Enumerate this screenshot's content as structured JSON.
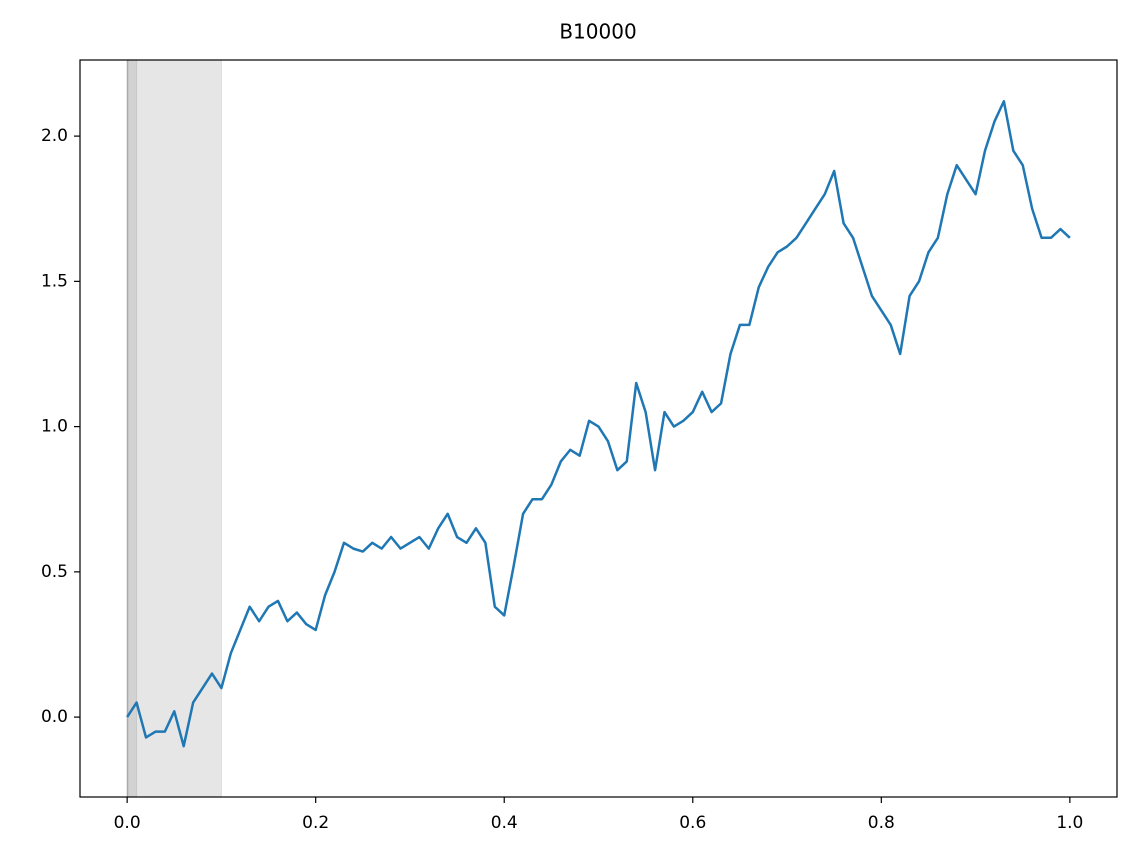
{
  "chart_data": {
    "type": "line",
    "title": "B10000",
    "x": [
      0.0,
      0.01,
      0.02,
      0.03,
      0.04,
      0.05,
      0.06,
      0.07,
      0.08,
      0.09,
      0.1,
      0.11,
      0.12,
      0.13,
      0.14,
      0.15,
      0.16,
      0.17,
      0.18,
      0.19,
      0.2,
      0.21,
      0.22,
      0.23,
      0.24,
      0.25,
      0.26,
      0.27,
      0.28,
      0.29,
      0.3,
      0.31,
      0.32,
      0.33,
      0.34,
      0.35,
      0.36,
      0.37,
      0.38,
      0.39,
      0.4,
      0.41,
      0.42,
      0.43,
      0.44,
      0.45,
      0.46,
      0.47,
      0.48,
      0.49,
      0.5,
      0.51,
      0.52,
      0.53,
      0.54,
      0.55,
      0.56,
      0.57,
      0.58,
      0.59,
      0.6,
      0.61,
      0.62,
      0.63,
      0.64,
      0.65,
      0.66,
      0.67,
      0.68,
      0.69,
      0.7,
      0.71,
      0.72,
      0.73,
      0.74,
      0.75,
      0.76,
      0.77,
      0.78,
      0.79,
      0.8,
      0.81,
      0.82,
      0.83,
      0.84,
      0.85,
      0.86,
      0.87,
      0.88,
      0.89,
      0.9,
      0.91,
      0.92,
      0.93,
      0.94,
      0.95,
      0.96,
      0.97,
      0.98,
      0.99,
      1.0
    ],
    "series": [
      {
        "color": "#1f77b4",
        "values": [
          0.0,
          0.05,
          -0.07,
          -0.05,
          -0.05,
          0.02,
          -0.1,
          0.05,
          0.1,
          0.15,
          0.1,
          0.22,
          0.3,
          0.38,
          0.33,
          0.38,
          0.4,
          0.33,
          0.36,
          0.32,
          0.3,
          0.42,
          0.5,
          0.6,
          0.58,
          0.57,
          0.6,
          0.58,
          0.62,
          0.58,
          0.6,
          0.62,
          0.58,
          0.65,
          0.7,
          0.62,
          0.6,
          0.65,
          0.6,
          0.38,
          0.35,
          0.52,
          0.7,
          0.75,
          0.75,
          0.8,
          0.88,
          0.92,
          0.9,
          1.02,
          1.0,
          0.95,
          0.85,
          0.88,
          1.15,
          1.05,
          0.85,
          1.05,
          1.0,
          1.02,
          1.05,
          1.12,
          1.05,
          1.08,
          1.25,
          1.35,
          1.35,
          1.48,
          1.55,
          1.6,
          1.62,
          1.65,
          1.7,
          1.75,
          1.8,
          1.88,
          1.7,
          1.65,
          1.55,
          1.45,
          1.4,
          1.35,
          1.25,
          1.45,
          1.5,
          1.6,
          1.65,
          1.8,
          1.9,
          1.85,
          1.8,
          1.95,
          2.05,
          2.12,
          1.95,
          1.9,
          1.75,
          1.65,
          1.65,
          1.68,
          1.65
        ]
      }
    ],
    "shaded_spans": [
      [
        0,
        0.1
      ],
      [
        0,
        0.01
      ],
      [
        0,
        0.001
      ]
    ],
    "span_color": "rgba(128,128,128,0.2)",
    "xlim": [
      -0.05,
      1.05
    ],
    "ylim": [
      -0.275,
      2.262
    ],
    "xticks": [
      {
        "value": 0,
        "label": "0.0"
      },
      0.2,
      0.4,
      0.6,
      0.8,
      {
        "value": 1,
        "label": "1.0"
      }
    ],
    "yticks": [
      {
        "value": 0,
        "label": "0.0"
      },
      0.5,
      {
        "value": 1,
        "label": "1.0"
      },
      1.5,
      {
        "value": 2,
        "label": "2.0"
      }
    ],
    "grid": false
  }
}
